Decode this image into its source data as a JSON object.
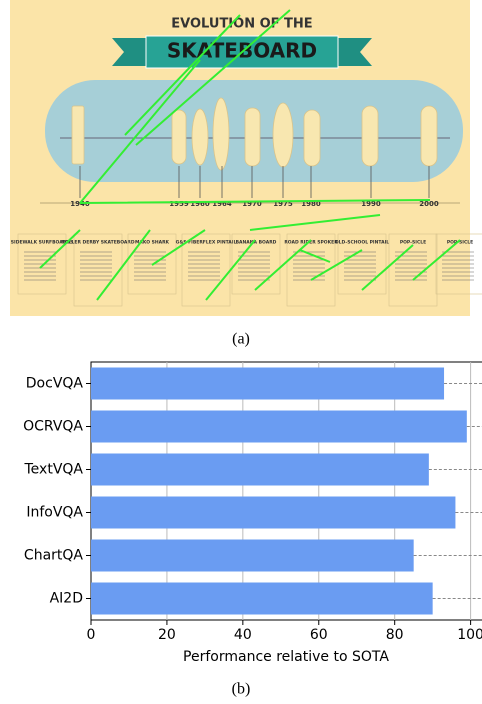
{
  "infographic": {
    "title_top": "EVOLUTION OF THE",
    "title_main": "SKATEBOARD",
    "years": [
      "1940",
      "1959",
      "1960",
      "1964",
      "1970",
      "1975",
      "1980",
      "1990",
      "2000"
    ],
    "labels": [
      "SIDEWALK SURFBOARDS",
      "ROLLER DERBY SKATEBOARD",
      "MAKO SHARK",
      "G&S FIBERFLEX PINTAIL",
      "BANANA BOARD",
      "ROAD RIDER SPOKER",
      "OLD-SCHOOL PINTAIL",
      "POP-SICLE",
      "POP-SICLE"
    ],
    "caption": "(a)"
  },
  "chart_data": {
    "type": "bar",
    "orientation": "horizontal",
    "xlabel": "Performance relative to SOTA",
    "categories": [
      "DocVQA",
      "OCRVQA",
      "TextVQA",
      "InfoVQA",
      "ChartQA",
      "AI2D"
    ],
    "values": [
      93,
      99,
      89,
      96,
      85,
      90
    ],
    "color": "#6a9cf2",
    "xlim": [
      0,
      103
    ],
    "xticks": [
      0,
      20,
      40,
      60,
      80,
      100
    ],
    "caption": "(b)"
  }
}
